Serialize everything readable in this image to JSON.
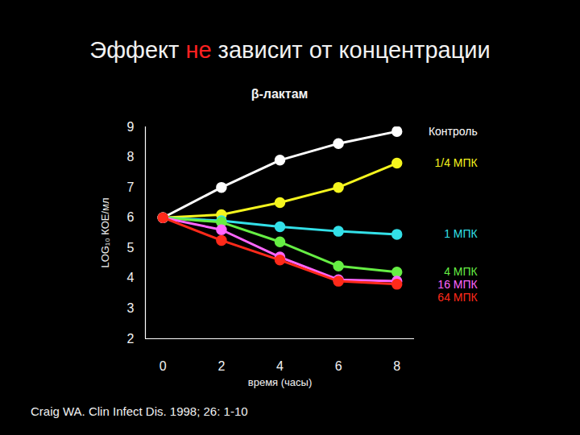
{
  "chart_data": {
    "type": "line",
    "title": "Эффект не зависит от концентрации",
    "subtitle": "β-лактам",
    "caption": "Craig WA. Clin Infect Dis. 1998; 26: 1-10",
    "x_label": "время (часы)",
    "y_label": "LOG₁₀ КОЕ/мл",
    "x": [
      0,
      2,
      4,
      6,
      8
    ],
    "series": [
      {
        "name": "Контроль",
        "color": "#ffffff",
        "values": [
          6.0,
          7.0,
          7.9,
          8.45,
          8.85
        ]
      },
      {
        "name": "1/4 МПК",
        "color": "#f5f51e",
        "values": [
          6.0,
          6.1,
          6.5,
          7.0,
          7.8
        ]
      },
      {
        "name": "1 МПК",
        "color": "#33e0e8",
        "values": [
          6.0,
          5.9,
          5.7,
          5.55,
          5.45
        ]
      },
      {
        "name": "4 МПК",
        "color": "#66ee44",
        "values": [
          6.0,
          5.85,
          5.2,
          4.4,
          4.2
        ]
      },
      {
        "name": "16 МПК",
        "color": "#ff66ff",
        "values": [
          6.0,
          5.6,
          4.7,
          3.95,
          3.9
        ]
      },
      {
        "name": "64 МПК",
        "color": "#ff2a1a",
        "values": [
          6.0,
          5.25,
          4.6,
          3.9,
          3.8
        ]
      }
    ],
    "xlim": [
      -0.6,
      8.6
    ],
    "ylim": [
      2,
      9
    ],
    "xticks": [
      0,
      2,
      4,
      6,
      8
    ],
    "yticks": [
      2,
      3,
      4,
      5,
      6,
      7,
      8,
      9
    ],
    "marker": "circle",
    "grid": false
  }
}
